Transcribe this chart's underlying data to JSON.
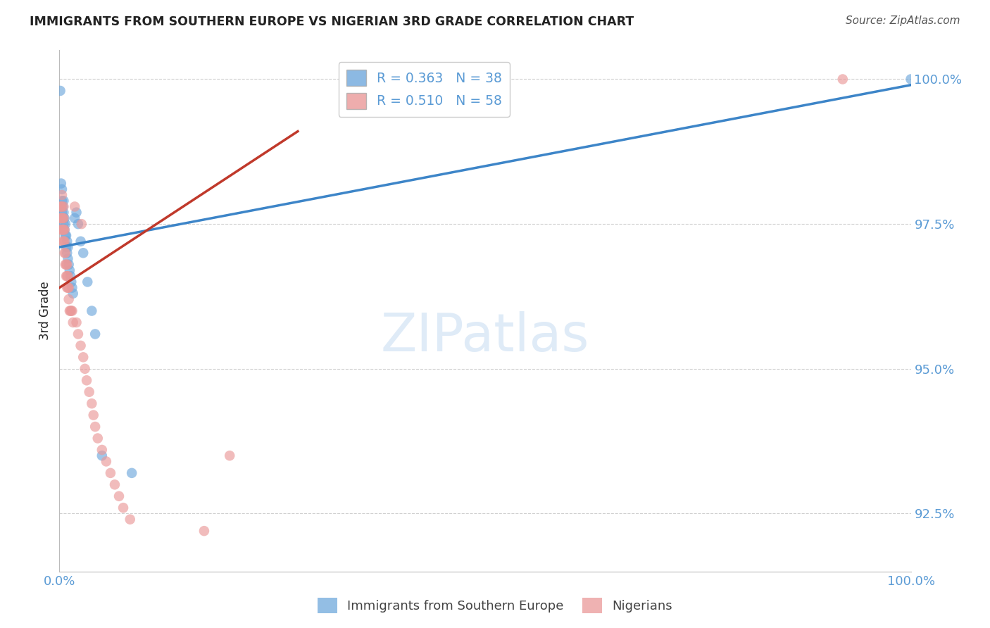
{
  "title": "IMMIGRANTS FROM SOUTHERN EUROPE VS NIGERIAN 3RD GRADE CORRELATION CHART",
  "source": "Source: ZipAtlas.com",
  "ylabel": "3rd Grade",
  "xlim": [
    0.0,
    1.0
  ],
  "ylim": [
    0.915,
    1.005
  ],
  "yticks": [
    0.925,
    0.95,
    0.975,
    1.0
  ],
  "ytick_labels": [
    "92.5%",
    "95.0%",
    "97.5%",
    "100.0%"
  ],
  "xtick_labels": [
    "0.0%",
    "100.0%"
  ],
  "legend_blue_r": "R = 0.363",
  "legend_blue_n": "N = 38",
  "legend_pink_r": "R = 0.510",
  "legend_pink_n": "N = 58",
  "blue_color": "#6fa8dc",
  "pink_color": "#ea9999",
  "blue_line_color": "#3d85c8",
  "pink_line_color": "#c0392b",
  "background_color": "#ffffff",
  "grid_color": "#bbbbbb",
  "title_color": "#222222",
  "tick_color": "#5b9bd5",
  "blue_scatter_x": [
    0.001,
    0.002,
    0.002,
    0.003,
    0.003,
    0.003,
    0.004,
    0.004,
    0.005,
    0.005,
    0.005,
    0.006,
    0.006,
    0.007,
    0.007,
    0.008,
    0.008,
    0.009,
    0.009,
    0.01,
    0.01,
    0.011,
    0.012,
    0.013,
    0.014,
    0.015,
    0.016,
    0.018,
    0.02,
    0.022,
    0.025,
    0.028,
    0.033,
    0.038,
    0.042,
    0.05,
    0.085,
    1.0
  ],
  "blue_scatter_y": [
    0.998,
    0.978,
    0.982,
    0.977,
    0.979,
    0.981,
    0.976,
    0.978,
    0.975,
    0.977,
    0.979,
    0.974,
    0.976,
    0.973,
    0.975,
    0.971,
    0.973,
    0.97,
    0.972,
    0.969,
    0.971,
    0.968,
    0.967,
    0.966,
    0.965,
    0.964,
    0.963,
    0.976,
    0.977,
    0.975,
    0.972,
    0.97,
    0.965,
    0.96,
    0.956,
    0.935,
    0.932,
    1.0
  ],
  "pink_scatter_x": [
    0.001,
    0.001,
    0.002,
    0.002,
    0.002,
    0.003,
    0.003,
    0.003,
    0.003,
    0.004,
    0.004,
    0.004,
    0.005,
    0.005,
    0.005,
    0.005,
    0.006,
    0.006,
    0.006,
    0.007,
    0.007,
    0.008,
    0.008,
    0.009,
    0.009,
    0.009,
    0.01,
    0.01,
    0.011,
    0.011,
    0.012,
    0.013,
    0.014,
    0.015,
    0.016,
    0.018,
    0.02,
    0.022,
    0.025,
    0.026,
    0.028,
    0.03,
    0.032,
    0.035,
    0.038,
    0.04,
    0.042,
    0.045,
    0.05,
    0.055,
    0.06,
    0.065,
    0.07,
    0.075,
    0.083,
    0.17,
    0.2,
    0.92
  ],
  "pink_scatter_y": [
    0.976,
    0.978,
    0.974,
    0.976,
    0.978,
    0.974,
    0.976,
    0.978,
    0.98,
    0.972,
    0.974,
    0.976,
    0.972,
    0.974,
    0.976,
    0.978,
    0.97,
    0.972,
    0.974,
    0.968,
    0.97,
    0.966,
    0.968,
    0.964,
    0.966,
    0.968,
    0.964,
    0.966,
    0.962,
    0.964,
    0.96,
    0.96,
    0.96,
    0.96,
    0.958,
    0.978,
    0.958,
    0.956,
    0.954,
    0.975,
    0.952,
    0.95,
    0.948,
    0.946,
    0.944,
    0.942,
    0.94,
    0.938,
    0.936,
    0.934,
    0.932,
    0.93,
    0.928,
    0.926,
    0.924,
    0.922,
    0.935,
    1.0
  ],
  "blue_line_x": [
    0.0,
    1.0
  ],
  "blue_line_y": [
    0.971,
    0.999
  ],
  "pink_line_x": [
    0.0,
    0.28
  ],
  "pink_line_y": [
    0.964,
    0.991
  ]
}
